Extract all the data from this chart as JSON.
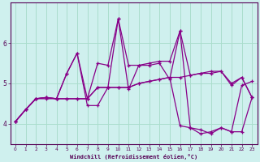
{
  "title": "",
  "xlabel": "Windchill (Refroidissement éolien,°C)",
  "xlim": [
    -0.5,
    23.5
  ],
  "ylim": [
    3.5,
    7.0
  ],
  "yticks": [
    4,
    5,
    6
  ],
  "xticks": [
    0,
    1,
    2,
    3,
    4,
    5,
    6,
    7,
    8,
    9,
    10,
    11,
    12,
    13,
    14,
    15,
    16,
    17,
    18,
    19,
    20,
    21,
    22,
    23
  ],
  "bg_plot": "#cff0ee",
  "bg_fig": "#cff0ee",
  "grid_color": "#aaddcc",
  "line_color": "#880088",
  "lines": [
    [
      4.05,
      4.35,
      4.62,
      4.65,
      4.62,
      5.25,
      5.75,
      4.45,
      4.45,
      4.9,
      6.6,
      4.85,
      5.45,
      5.5,
      5.55,
      5.55,
      6.3,
      3.9,
      3.85,
      3.75,
      3.9,
      3.8,
      4.95,
      5.05
    ],
    [
      4.05,
      4.35,
      4.62,
      4.65,
      4.62,
      4.62,
      4.62,
      4.62,
      4.9,
      4.9,
      4.9,
      4.9,
      5.0,
      5.05,
      5.1,
      5.15,
      5.15,
      5.2,
      5.25,
      5.25,
      5.3,
      5.0,
      5.15,
      4.65
    ],
    [
      4.05,
      4.35,
      4.62,
      4.65,
      4.62,
      4.62,
      4.62,
      4.62,
      4.9,
      4.9,
      4.9,
      4.9,
      5.0,
      5.05,
      5.1,
      5.15,
      3.95,
      3.9,
      3.75,
      3.8,
      3.9,
      3.8,
      3.8,
      4.65
    ],
    [
      4.05,
      4.35,
      4.62,
      4.62,
      4.62,
      5.25,
      5.75,
      4.62,
      5.5,
      5.45,
      6.6,
      5.45,
      5.45,
      5.45,
      5.5,
      5.1,
      6.3,
      5.2,
      5.25,
      5.3,
      5.3,
      4.95,
      5.15,
      4.65
    ]
  ]
}
